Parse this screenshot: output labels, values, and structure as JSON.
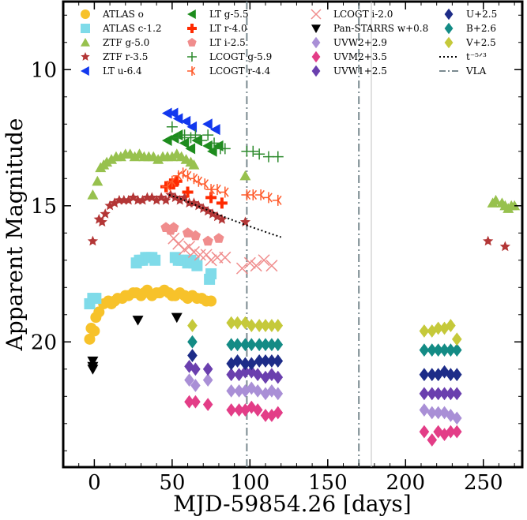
{
  "chart_data": {
    "type": "scatter",
    "xlabel": "MJD-59854.26 [days]",
    "ylabel": "Apparent Magnitude",
    "xlim": [
      -20,
      275
    ],
    "ylim": [
      24.6,
      7.5
    ],
    "y_inverted": true,
    "xticks": [
      0,
      50,
      100,
      150,
      200,
      250
    ],
    "yticks": [
      10,
      15,
      20
    ],
    "legend_position": "top",
    "series": [
      {
        "name": "ATLAS o",
        "color": "#f7c22a",
        "marker": "circle",
        "x": [
          -3,
          -2,
          0,
          1,
          3,
          6,
          9,
          11,
          13,
          15,
          18,
          20,
          22,
          25,
          27,
          30,
          32,
          34,
          37,
          40,
          42,
          45,
          48,
          50,
          52,
          55,
          58,
          60,
          63,
          66,
          69,
          72,
          75
        ],
        "y": [
          19.9,
          19.5,
          19.6,
          19.1,
          18.9,
          18.6,
          18.5,
          18.6,
          18.5,
          18.4,
          18.4,
          18.3,
          18.3,
          18.2,
          18.2,
          18.3,
          18.2,
          18.1,
          18.3,
          18.2,
          18.2,
          18.1,
          18.2,
          18.3,
          18.3,
          18.2,
          18.3,
          18.4,
          18.3,
          18.4,
          18.4,
          18.5,
          18.5
        ]
      },
      {
        "name": "ATLAS c-1.2",
        "color": "#7fdbe9",
        "marker": "square",
        "x": [
          -3,
          -1,
          1,
          27,
          29,
          31,
          33,
          35,
          37,
          39,
          52,
          54,
          56,
          58,
          60,
          62,
          64,
          66,
          74,
          75
        ],
        "y": [
          18.6,
          18.4,
          18.4,
          17.1,
          17.0,
          17.0,
          16.9,
          16.9,
          16.9,
          17.0,
          16.9,
          17.0,
          17.0,
          17.0,
          17.1,
          17.0,
          17.1,
          17.2,
          17.7,
          17.5
        ]
      },
      {
        "name": "ZTF g-5.0",
        "color": "#97c14e",
        "marker": "triangle",
        "x": [
          -1,
          2,
          4,
          6,
          8,
          11,
          14,
          17,
          20,
          23,
          26,
          29,
          32,
          35,
          38,
          41,
          44,
          47,
          50,
          53,
          56,
          59,
          62,
          64,
          97,
          256,
          258,
          262,
          264,
          266,
          268,
          270
        ],
        "y": [
          14.6,
          14.1,
          13.6,
          13.5,
          13.4,
          13.3,
          13.2,
          13.2,
          13.1,
          13.1,
          13.2,
          13.1,
          13.2,
          13.2,
          13.2,
          13.3,
          13.2,
          13.2,
          13.2,
          13.1,
          13.2,
          13.3,
          13.4,
          13.5,
          13.9,
          14.9,
          14.8,
          14.9,
          15.0,
          15.1,
          15.0,
          15.0
        ]
      },
      {
        "name": "ZTF r-3.5",
        "color": "#b33636",
        "marker": "star",
        "x": [
          -1,
          3,
          5,
          7,
          10,
          13,
          16,
          19,
          22,
          25,
          28,
          31,
          34,
          37,
          40,
          43,
          46,
          49,
          52,
          55,
          58,
          61,
          64,
          67,
          70,
          73,
          76,
          79,
          82,
          97,
          253,
          264
        ],
        "y": [
          16.3,
          15.5,
          15.6,
          15.3,
          15.0,
          14.9,
          14.8,
          14.8,
          14.8,
          14.7,
          14.8,
          14.8,
          14.7,
          14.7,
          14.8,
          14.7,
          14.8,
          14.6,
          14.7,
          14.8,
          14.7,
          14.9,
          14.9,
          15.0,
          15.1,
          15.2,
          15.3,
          15.4,
          15.5,
          15.6,
          16.3,
          16.5
        ]
      },
      {
        "name": "LT u-6.4",
        "color": "#1238ee",
        "marker": "triangle-left",
        "x": [
          47,
          51,
          54,
          59,
          63,
          73,
          78
        ],
        "y": [
          11.6,
          11.6,
          11.8,
          11.9,
          12.1,
          12.0,
          12.2
        ]
      },
      {
        "name": "LT r-4.0",
        "color": "#ff2a00",
        "marker": "plus-bold",
        "x": [
          46,
          49,
          51,
          53,
          60,
          75,
          82
        ],
        "y": [
          14.3,
          14.2,
          14.2,
          14.1,
          14.5,
          14.7,
          14.9
        ]
      },
      {
        "name": "LT i-2.5",
        "color": "#f08d8d",
        "marker": "pentagon",
        "x": [
          46,
          49,
          51,
          60,
          65,
          73,
          80
        ],
        "y": [
          15.8,
          15.9,
          15.8,
          16.0,
          16.1,
          16.3,
          16.2
        ]
      },
      {
        "name": "LCOGT g-5.9",
        "color": "#2c8a2c",
        "marker": "plus",
        "x": [
          50,
          54,
          58,
          62,
          65,
          69,
          73,
          77,
          81,
          84,
          98,
          102,
          106,
          112,
          118
        ],
        "y": [
          12.1,
          12.5,
          12.4,
          12.5,
          12.4,
          12.6,
          12.4,
          12.7,
          12.9,
          12.9,
          13.0,
          13.0,
          13.1,
          13.2,
          13.2
        ]
      },
      {
        "name": "LCOGT r-4.4",
        "color": "#ff5a2a",
        "marker": "tri-left",
        "x": [
          47,
          50,
          54,
          57,
          60,
          64,
          67,
          71,
          75,
          79,
          84,
          98,
          102,
          107,
          112,
          118
        ],
        "y": [
          14.3,
          14.1,
          13.9,
          13.8,
          13.9,
          14.0,
          14.1,
          14.2,
          14.4,
          14.4,
          14.5,
          14.6,
          14.6,
          14.6,
          14.7,
          14.8
        ]
      },
      {
        "name": "LCOGT i-2.0",
        "color": "#f08d8d",
        "marker": "x",
        "x": [
          51,
          54,
          58,
          61,
          64,
          68,
          72,
          75,
          79,
          84,
          95,
          100,
          104,
          109,
          114
        ],
        "y": [
          16.2,
          16.4,
          16.6,
          16.5,
          16.7,
          16.8,
          16.8,
          17.0,
          16.9,
          16.9,
          17.3,
          17.1,
          17.2,
          17.0,
          17.2
        ]
      },
      {
        "name": "Pan-STARRS w+0.8",
        "color": "#000000",
        "marker": "triangle-down",
        "x": [
          -1,
          -1,
          -1,
          28,
          53
        ],
        "y": [
          20.7,
          20.9,
          21.0,
          19.2,
          19.1
        ]
      },
      {
        "name": "UVW2+2.9",
        "color": "#a98fd6",
        "marker": "diamond",
        "x": [
          61,
          65,
          73,
          88,
          93,
          97,
          101,
          105,
          110,
          114,
          118,
          212,
          217,
          221,
          225,
          229,
          233
        ],
        "y": [
          21.4,
          21.6,
          21.4,
          21.8,
          21.8,
          21.8,
          21.7,
          21.8,
          21.9,
          21.8,
          21.9,
          22.5,
          22.6,
          22.6,
          22.6,
          22.7,
          22.8
        ]
      },
      {
        "name": "UVM2+3.5",
        "color": "#e33d87",
        "marker": "diamond",
        "x": [
          61,
          65,
          73,
          88,
          93,
          97,
          101,
          105,
          110,
          114,
          118,
          212,
          217,
          221,
          225,
          229,
          233
        ],
        "y": [
          22.2,
          22.2,
          22.3,
          22.5,
          22.5,
          22.5,
          22.4,
          22.5,
          22.7,
          22.7,
          22.6,
          23.3,
          23.6,
          23.3,
          23.4,
          23.3,
          23.3
        ]
      },
      {
        "name": "UVW1+2.5",
        "color": "#6a3fae",
        "marker": "diamond",
        "x": [
          61,
          65,
          73,
          88,
          93,
          97,
          101,
          105,
          110,
          114,
          118,
          212,
          217,
          221,
          225,
          229,
          233
        ],
        "y": [
          20.9,
          21.0,
          21.0,
          21.2,
          21.2,
          21.1,
          21.1,
          21.2,
          21.3,
          21.2,
          21.3,
          21.9,
          21.9,
          21.9,
          21.9,
          21.9,
          21.9
        ]
      },
      {
        "name": "U+2.5",
        "color": "#1d2c88",
        "marker": "diamond",
        "x": [
          63,
          88,
          92,
          97,
          101,
          106,
          110,
          114,
          118,
          212,
          217,
          221,
          225,
          229,
          233
        ],
        "y": [
          20.5,
          20.8,
          20.7,
          20.8,
          20.8,
          20.7,
          20.7,
          20.7,
          20.7,
          21.2,
          21.2,
          21.2,
          21.1,
          21.2,
          21.2
        ]
      },
      {
        "name": "B+2.6",
        "color": "#138b85",
        "marker": "diamond",
        "x": [
          63,
          88,
          92,
          97,
          101,
          106,
          110,
          114,
          118,
          212,
          217,
          221,
          225,
          229,
          233
        ],
        "y": [
          20.0,
          20.1,
          20.1,
          20.1,
          20.1,
          20.1,
          20.1,
          20.1,
          20.1,
          20.3,
          20.3,
          20.3,
          20.3,
          20.3,
          20.3
        ]
      },
      {
        "name": "V+2.5",
        "color": "#c5c93a",
        "marker": "diamond",
        "x": [
          63,
          88,
          92,
          97,
          101,
          106,
          110,
          114,
          118,
          212,
          217,
          221,
          225,
          229,
          233
        ],
        "y": [
          19.4,
          19.3,
          19.3,
          19.3,
          19.4,
          19.4,
          19.4,
          19.4,
          19.4,
          19.6,
          19.6,
          19.5,
          19.5,
          19.4,
          19.9
        ]
      },
      {
        "name": "t^{-5/3}",
        "color": "#000000",
        "marker": "dotted-line",
        "x": [
          48,
          55,
          60,
          65,
          70,
          75,
          80,
          85,
          90,
          95,
          100,
          105,
          110,
          115,
          120
        ],
        "y": [
          14.6,
          14.73,
          14.85,
          14.97,
          15.09,
          15.21,
          15.33,
          15.44,
          15.55,
          15.66,
          15.76,
          15.86,
          15.96,
          16.06,
          16.15
        ]
      }
    ],
    "vertical_lines": [
      {
        "name": "VLA",
        "x": [
          98,
          170
        ],
        "color": "#7a8a90",
        "style": "dashdot"
      }
    ],
    "vertical_solid_line": {
      "x": 178,
      "color": "#c0c0c0"
    },
    "legend": {
      "col1": [
        "ATLAS o",
        "ATLAS c-1.2",
        "ZTF g-5.0",
        "ZTF r-3.5",
        "LT u-6.4"
      ],
      "col2": [
        "LT g-5.5",
        "LT r-4.0",
        "LT i-2.5",
        "LCOGT g-5.9",
        "LCOGT r-4.4"
      ],
      "col3": [
        "LCOGT i-2.0",
        "Pan-STARRS w+0.8",
        "UVW2+2.9",
        "UVM2+3.5",
        "UVW1+2.5"
      ],
      "col4": [
        "U+2.5",
        "B+2.6",
        "V+2.5",
        "t⁻⁵ᐟ³",
        "VLA"
      ]
    },
    "lt_g": {
      "name": "LT g-5.5",
      "color": "#1d8c1d",
      "marker": "triangle-left",
      "x": [
        47,
        51,
        54,
        58,
        62,
        66,
        73,
        76,
        80
      ],
      "y": [
        12.6,
        12.5,
        12.4,
        12.7,
        12.9,
        12.6,
        12.8,
        13.0,
        12.8
      ]
    }
  }
}
